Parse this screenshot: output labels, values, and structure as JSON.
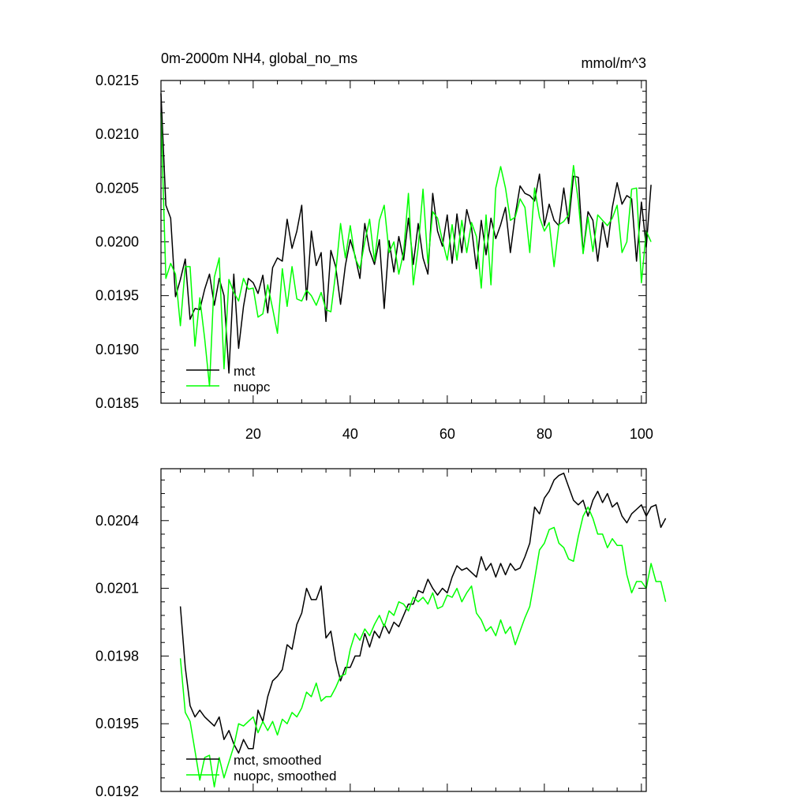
{
  "chart_data": [
    {
      "type": "line",
      "title": "0m-2000m NH4, global_no_ms",
      "units": "mmol/m^3",
      "xlabel": "",
      "ylabel": "",
      "xlim": [
        1,
        101
      ],
      "ylim": [
        0.0185,
        0.0215
      ],
      "x_ticks": [
        20,
        40,
        60,
        80,
        100
      ],
      "x_tick_labels": [
        "20",
        "40",
        "60",
        "80",
        "100"
      ],
      "y_ticks": [
        0.0185,
        0.019,
        0.0195,
        0.02,
        0.0205,
        0.021,
        0.0215
      ],
      "y_tick_labels": [
        "0.0185",
        "0.0190",
        "0.0195",
        "0.0200",
        "0.0205",
        "0.0210",
        "0.0215"
      ],
      "legend_position": "bottom-left",
      "series": [
        {
          "name": "mct",
          "color": "#000000",
          "values": [
            0.02138,
            0.02034,
            0.02022,
            0.01949,
            0.01965,
            0.01984,
            0.01928,
            0.01938,
            0.01937,
            0.01956,
            0.0197,
            0.01941,
            0.01966,
            0.0195,
            0.01878,
            0.0197,
            0.01901,
            0.0194,
            0.01966,
            0.01962,
            0.01952,
            0.01969,
            0.01934,
            0.01976,
            0.01985,
            0.01982,
            0.02021,
            0.01994,
            0.0201,
            0.02034,
            0.01946,
            0.0201,
            0.01978,
            0.0199,
            0.01926,
            0.01992,
            0.01977,
            0.01942,
            0.01978,
            0.02002,
            0.01987,
            0.01966,
            0.02017,
            0.01992,
            0.01979,
            0.02002,
            0.01938,
            0.02001,
            0.01972,
            0.02005,
            0.01983,
            0.02022,
            0.01979,
            0.02017,
            0.01985,
            0.0197,
            0.02045,
            0.0201,
            0.01996,
            0.02025,
            0.0198,
            0.02026,
            0.0199,
            0.0203,
            0.02013,
            0.01975,
            0.0202,
            0.01988,
            0.02022,
            0.02003,
            0.02016,
            0.02032,
            0.0199,
            0.02025,
            0.02052,
            0.02045,
            0.02043,
            0.02038,
            0.02063,
            0.02015,
            0.02035,
            0.0202,
            0.02015,
            0.0205,
            0.02017,
            0.02061,
            0.0206,
            0.0199,
            0.02028,
            0.0202,
            0.01982,
            0.02018,
            0.01995,
            0.02032,
            0.02055,
            0.02035,
            0.02043,
            0.0204,
            0.01982,
            0.02037,
            0.01995,
            0.02053
          ]
        },
        {
          "name": "nuopc",
          "color": "#00ff00",
          "values": [
            0.0212,
            0.01966,
            0.0198,
            0.0197,
            0.01922,
            0.01977,
            0.01977,
            0.01903,
            0.01948,
            0.0191,
            0.01866,
            0.01967,
            0.01985,
            0.01882,
            0.01965,
            0.01953,
            0.01945,
            0.01966,
            0.01956,
            0.01957,
            0.0193,
            0.01933,
            0.0196,
            0.01938,
            0.01915,
            0.01975,
            0.0194,
            0.01977,
            0.01947,
            0.01945,
            0.01955,
            0.0195,
            0.01941,
            0.01953,
            0.01937,
            0.01935,
            0.01971,
            0.02017,
            0.01985,
            0.02015,
            0.01985,
            0.01975,
            0.02,
            0.02021,
            0.01982,
            0.0202,
            0.02034,
            0.0199,
            0.02,
            0.0197,
            0.0199,
            0.02045,
            0.0196,
            0.01995,
            0.02049,
            0.0198,
            0.02028,
            0.02022,
            0.02001,
            0.01983,
            0.02016,
            0.01983,
            0.0202,
            0.0199,
            0.02018,
            0.02005,
            0.01957,
            0.02025,
            0.0196,
            0.0205,
            0.0207,
            0.0205,
            0.0202,
            0.02023,
            0.0204,
            0.02032,
            0.0199,
            0.0205,
            0.02023,
            0.0201,
            0.02018,
            0.01977,
            0.02016,
            0.02019,
            0.02025,
            0.02071,
            0.02038,
            0.01989,
            0.02023,
            0.01991,
            0.02025,
            0.0202,
            0.02015,
            0.02022,
            0.02034,
            0.0199,
            0.02,
            0.02049,
            0.0205,
            0.01962,
            0.0201,
            0.02
          ]
        }
      ]
    },
    {
      "type": "line",
      "title": "",
      "xlabel": "",
      "ylabel": "",
      "xlim": [
        1,
        101
      ],
      "ylim": [
        0.0192,
        0.02063
      ],
      "x_ticks": [
        20,
        40,
        60,
        80,
        100
      ],
      "y_ticks": [
        0.0192,
        0.0195,
        0.0198,
        0.0201,
        0.0204
      ],
      "y_tick_labels": [
        "0.0192",
        "0.0195",
        "0.0198",
        "0.0201",
        "0.0204"
      ],
      "legend_position": "bottom-left",
      "series": [
        {
          "name": "mct, smoothed",
          "color": "#000000",
          "x_start": 5,
          "values": [
            0.02002,
            0.01975,
            0.01958,
            0.01953,
            0.01956,
            0.01953,
            0.01951,
            0.01949,
            0.01953,
            0.01943,
            0.01947,
            0.01941,
            0.01937,
            0.01943,
            0.01939,
            0.01939,
            0.01956,
            0.01951,
            0.01962,
            0.01969,
            0.01971,
            0.01974,
            0.01985,
            0.01983,
            0.01994,
            0.01999,
            0.0201,
            0.02005,
            0.02005,
            0.02011,
            0.01988,
            0.01991,
            0.01978,
            0.01969,
            0.01975,
            0.01975,
            0.0198,
            0.0198,
            0.0199,
            0.01984,
            0.01991,
            0.01988,
            0.01994,
            0.0199,
            0.01995,
            0.01993,
            0.01998,
            0.02003,
            0.02003,
            0.02009,
            0.02008,
            0.02014,
            0.0201,
            0.02007,
            0.0201,
            0.02008,
            0.02015,
            0.0202,
            0.02018,
            0.02019,
            0.02017,
            0.02015,
            0.02024,
            0.02018,
            0.02021,
            0.02015,
            0.02021,
            0.02016,
            0.02021,
            0.02018,
            0.02019,
            0.02024,
            0.0203,
            0.02046,
            0.02043,
            0.0205,
            0.02053,
            0.02058,
            0.0206,
            0.02061,
            0.02055,
            0.02049,
            0.02047,
            0.02049,
            0.02042,
            0.02049,
            0.02053,
            0.02048,
            0.02052,
            0.02046,
            0.02048,
            0.02042,
            0.02039,
            0.02043,
            0.02045,
            0.02047,
            0.02042,
            0.02046,
            0.02047,
            0.02037,
            0.02041
          ]
        },
        {
          "name": "nuopc, smoothed",
          "color": "#00ff00",
          "x_start": 5,
          "values": [
            0.01979,
            0.01955,
            0.01951,
            0.01938,
            0.01925,
            0.01935,
            0.01936,
            0.01922,
            0.01935,
            0.01926,
            0.01933,
            0.0194,
            0.0195,
            0.01949,
            0.01951,
            0.01953,
            0.01946,
            0.01951,
            0.01947,
            0.01951,
            0.01945,
            0.01952,
            0.0195,
            0.01955,
            0.01953,
            0.01957,
            0.01964,
            0.01962,
            0.01968,
            0.0196,
            0.01962,
            0.01962,
            0.01966,
            0.01971,
            0.01972,
            0.01983,
            0.0199,
            0.01987,
            0.01992,
            0.01989,
            0.01994,
            0.01998,
            0.01993,
            0.02,
            0.01998,
            0.02004,
            0.02003,
            0.02,
            0.02006,
            0.02004,
            0.02006,
            0.02003,
            0.02008,
            0.02001,
            0.02002,
            0.02007,
            0.02006,
            0.0201,
            0.02004,
            0.02008,
            0.02011,
            0.01999,
            0.01996,
            0.01991,
            0.01993,
            0.01989,
            0.01996,
            0.0199,
            0.01993,
            0.01985,
            0.01991,
            0.01997,
            0.02002,
            0.02014,
            0.02027,
            0.0203,
            0.02036,
            0.02037,
            0.0203,
            0.02028,
            0.02023,
            0.02022,
            0.02033,
            0.02042,
            0.02046,
            0.02041,
            0.02034,
            0.02034,
            0.02028,
            0.02032,
            0.02029,
            0.02029,
            0.02016,
            0.02008,
            0.02013,
            0.02013,
            0.0201,
            0.02021,
            0.02013,
            0.02013,
            0.02004
          ]
        }
      ]
    }
  ]
}
